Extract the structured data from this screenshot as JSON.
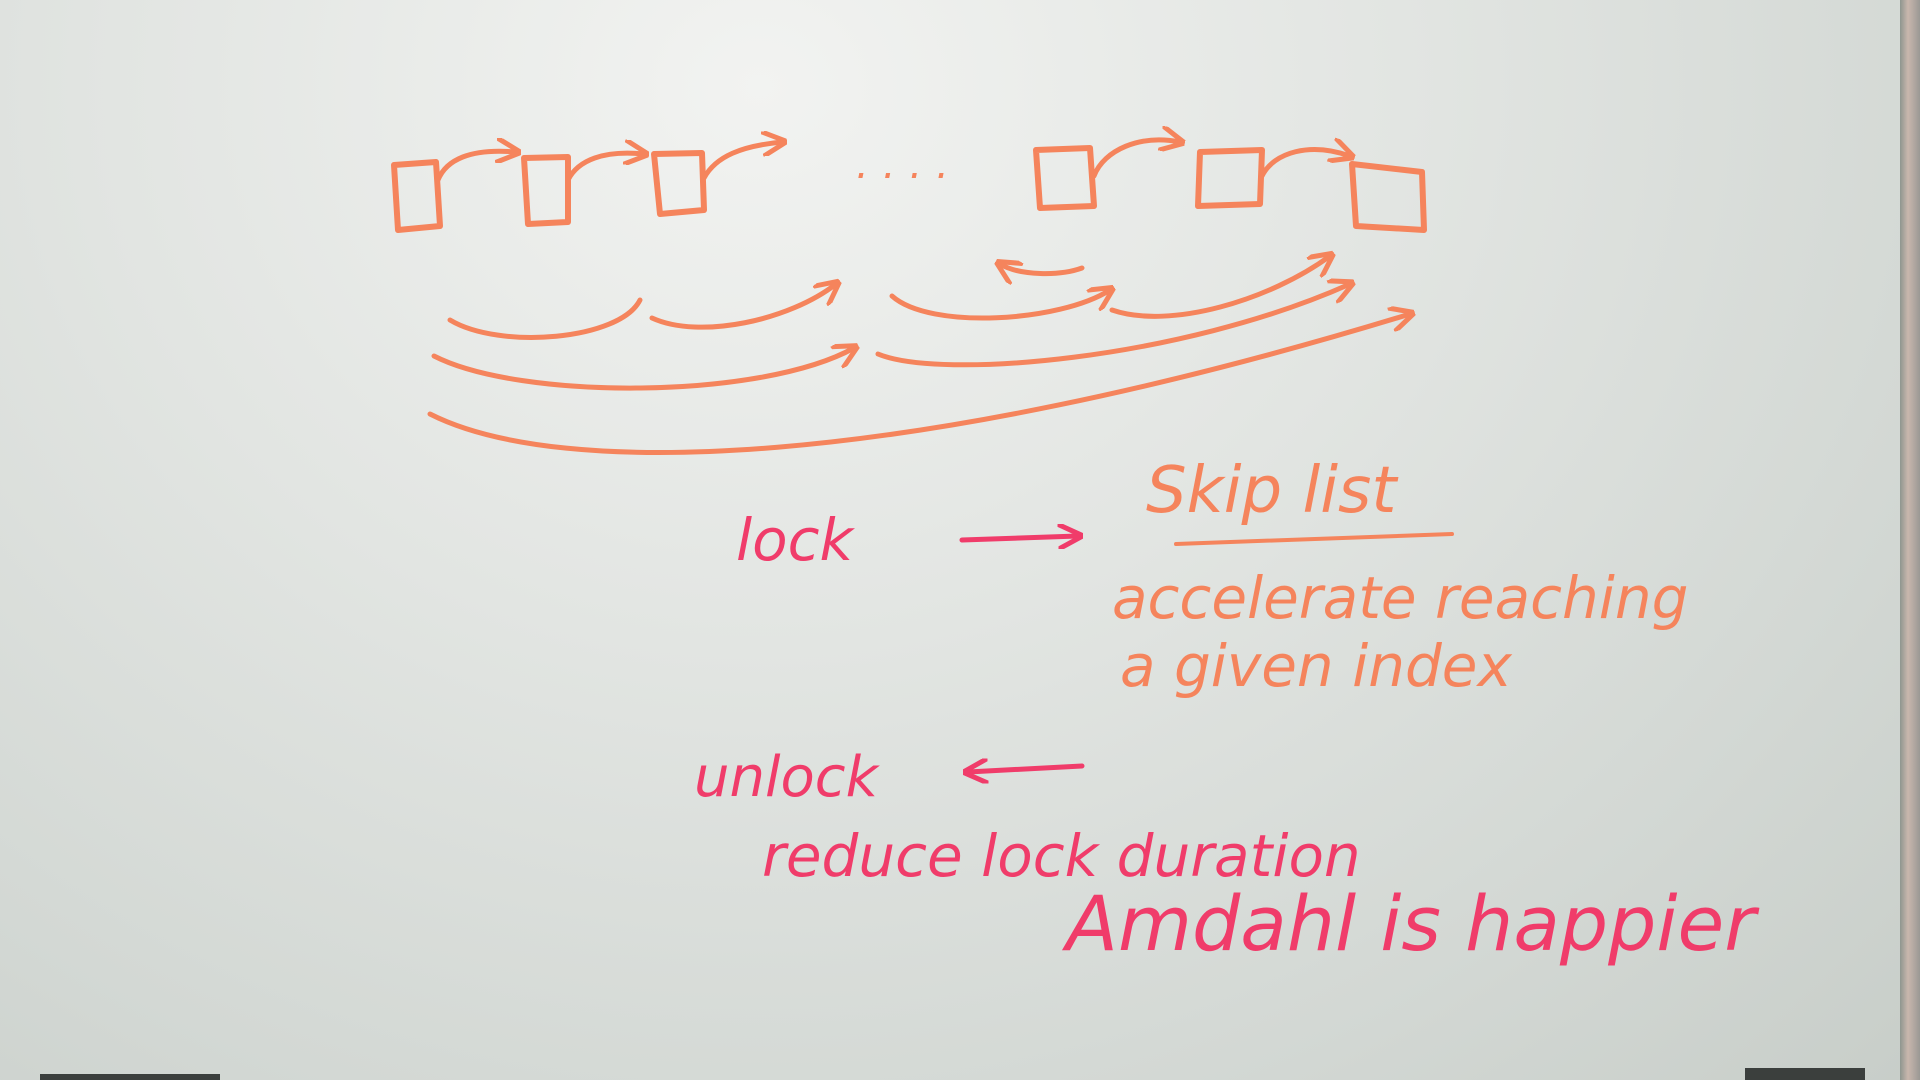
{
  "colors": {
    "orange_marker": "#f5845c",
    "red_marker": "#f03c6a",
    "board": "#e2e5e2"
  },
  "list_ellipsis": "....",
  "notes": {
    "lock": "lock",
    "skip_list_title": "Skip list",
    "skip_desc_line1": "accelerate reaching",
    "skip_desc_line2": "a given index",
    "unlock": "unlock",
    "reduce": "reduce lock duration",
    "amdahl": "Amdahl is happier"
  }
}
